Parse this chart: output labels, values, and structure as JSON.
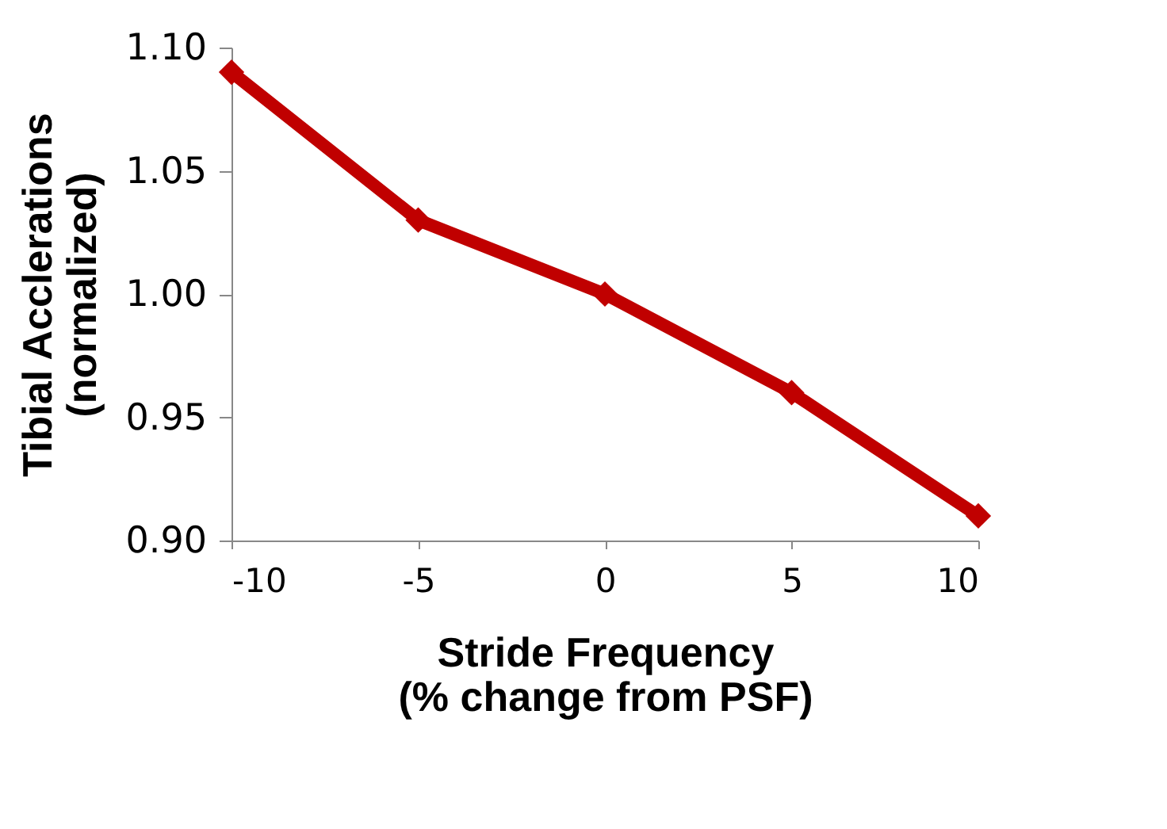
{
  "chart_data": {
    "type": "line",
    "xlabel": "Stride Frequency\n(% change from PSF)",
    "ylabel": "Tibial Acclerations\n(normalized)",
    "x": [
      -10,
      -5,
      0,
      5,
      10
    ],
    "series": [
      {
        "color": "#c00000",
        "values": [
          1.09,
          1.03,
          1.0,
          0.96,
          0.91
        ]
      }
    ],
    "xlim": [
      -10,
      10
    ],
    "xticks": [
      -10,
      -5,
      0,
      5,
      10
    ],
    "ylim": [
      0.9,
      1.1
    ],
    "yticks": [
      {
        "value": 0.9,
        "label": "0.90"
      },
      0.95,
      {
        "value": 1.0,
        "label": "1.00"
      },
      1.05,
      {
        "value": 1.1,
        "label": "1.10"
      }
    ],
    "grid": false,
    "legend": false,
    "marker": "diamond",
    "line_style": "solid"
  }
}
